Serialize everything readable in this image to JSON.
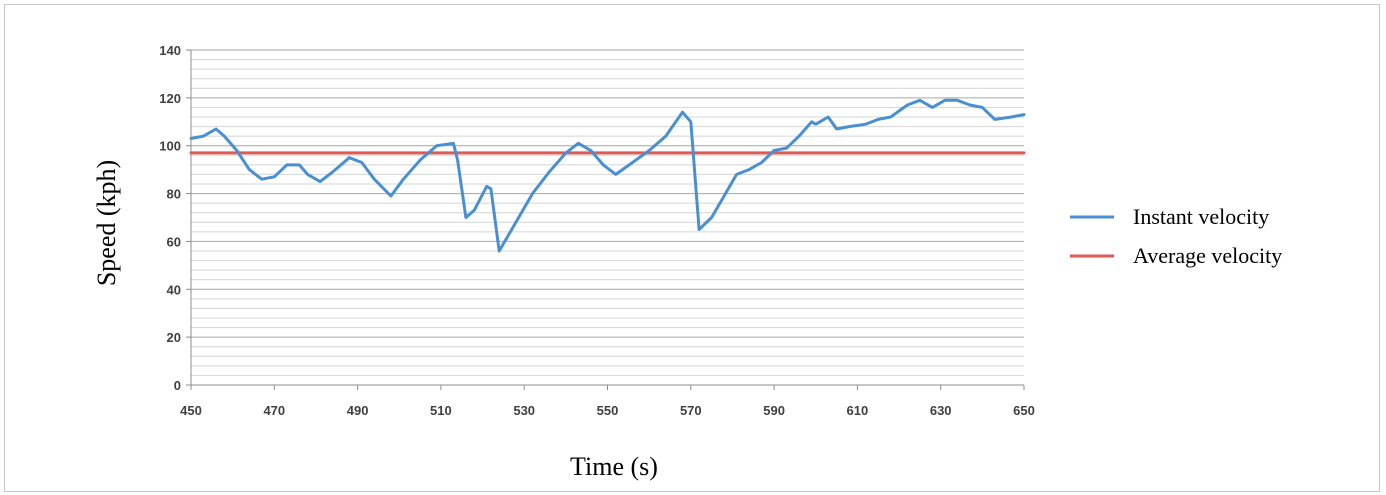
{
  "chart_data": {
    "type": "line",
    "xlabel": "Time (s)",
    "ylabel": "Speed (kph)",
    "xlim": [
      450,
      650
    ],
    "ylim": [
      0,
      140
    ],
    "x_ticks": [
      450,
      470,
      490,
      510,
      530,
      550,
      570,
      590,
      610,
      630,
      650
    ],
    "y_ticks": [
      0,
      20,
      40,
      60,
      80,
      100,
      120,
      140
    ],
    "grid": true,
    "legend_position": "right",
    "series": [
      {
        "name": "Instant velocity",
        "color": "#4a8fd0",
        "x": [
          450,
          453,
          456,
          458,
          461,
          464,
          467,
          470,
          473,
          476,
          478,
          481,
          484,
          488,
          491,
          494,
          498,
          501,
          505,
          509,
          513,
          514,
          516,
          518,
          521,
          522,
          524,
          527,
          532,
          536,
          540,
          543,
          546,
          549,
          552,
          556,
          560,
          564,
          568,
          570,
          572,
          575,
          578,
          581,
          584,
          587,
          590,
          593,
          596,
          599,
          600,
          603,
          605,
          608,
          612,
          615,
          618,
          622,
          625,
          628,
          631,
          634,
          637,
          640,
          643,
          647,
          650
        ],
        "y": [
          103,
          104,
          107,
          104,
          98,
          90,
          86,
          87,
          92,
          92,
          88,
          85,
          89,
          95,
          93,
          86,
          79,
          86,
          94,
          100,
          101,
          94,
          70,
          73,
          83,
          82,
          56,
          65,
          80,
          89,
          97,
          101,
          98,
          92,
          88,
          93,
          98,
          104,
          114,
          110,
          65,
          70,
          79,
          88,
          90,
          93,
          98,
          99,
          104,
          110,
          109,
          112,
          107,
          108,
          109,
          111,
          112,
          117,
          119,
          116,
          119,
          119,
          117,
          116,
          111,
          112,
          113
        ]
      },
      {
        "name": "Average velocity",
        "color": "#e05a55",
        "x": [
          450,
          650
        ],
        "y": [
          97,
          97
        ]
      }
    ]
  }
}
